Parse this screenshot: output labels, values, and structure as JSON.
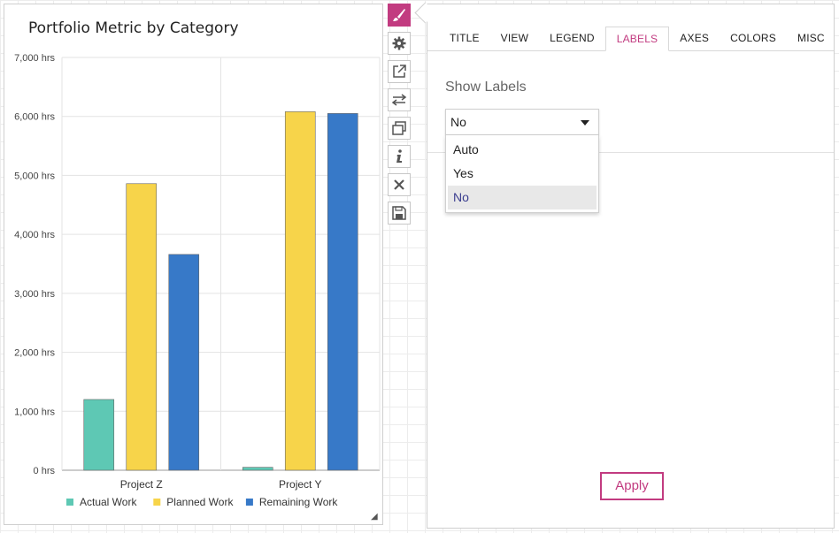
{
  "chart_data": {
    "type": "bar",
    "title": "Portfolio Metric by Category",
    "categories": [
      "Project Z",
      "Project Y"
    ],
    "series": [
      {
        "name": "Actual Work",
        "color": "#5ec8b4",
        "values": [
          1200,
          50
        ]
      },
      {
        "name": "Planned Work",
        "color": "#f7d44a",
        "values": [
          4860,
          6080
        ]
      },
      {
        "name": "Remaining Work",
        "color": "#3779c8",
        "values": [
          3660,
          6050
        ]
      }
    ],
    "ylim": [
      0,
      7000
    ],
    "yticks": [
      0,
      1000,
      2000,
      3000,
      4000,
      5000,
      6000,
      7000
    ],
    "ytick_labels": [
      "0 hrs",
      "1,000 hrs",
      "2,000 hrs",
      "3,000 hrs",
      "4,000 hrs",
      "5,000 hrs",
      "6,000 hrs",
      "7,000 hrs"
    ],
    "grid": true,
    "legend_position": "bottom"
  },
  "toolbar": {
    "tools": [
      {
        "name": "brush-icon",
        "active": true
      },
      {
        "name": "gear-icon",
        "active": false
      },
      {
        "name": "external-link-icon",
        "active": false
      },
      {
        "name": "swap-icon",
        "active": false
      },
      {
        "name": "copy-icon",
        "active": false
      },
      {
        "name": "info-icon",
        "active": false
      },
      {
        "name": "close-icon",
        "active": false
      },
      {
        "name": "save-icon",
        "active": false
      }
    ]
  },
  "panel": {
    "tabs": [
      {
        "label": "TITLE",
        "active": false
      },
      {
        "label": "VIEW",
        "active": false
      },
      {
        "label": "LEGEND",
        "active": false
      },
      {
        "label": "LABELS",
        "active": true
      },
      {
        "label": "AXES",
        "active": false
      },
      {
        "label": "COLORS",
        "active": false
      },
      {
        "label": "MISC",
        "active": false
      }
    ],
    "show_labels_heading": "Show Labels",
    "select_value": "No",
    "options": [
      "Auto",
      "Yes",
      "No"
    ],
    "selected_option": "No",
    "apply_label": "Apply"
  },
  "colors": {
    "accent": "#c23b80",
    "selected_option_text": "#3b3e8f"
  }
}
